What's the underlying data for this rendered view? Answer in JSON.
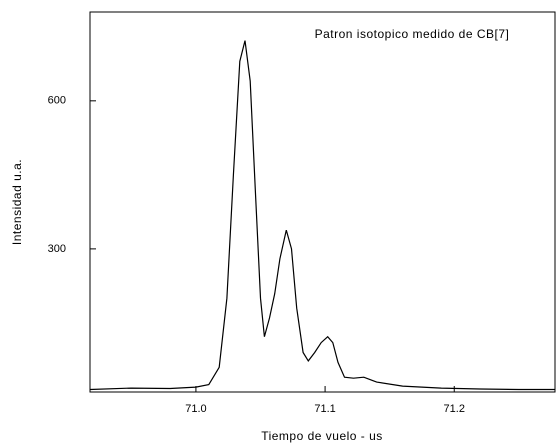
{
  "chart_data": {
    "type": "line",
    "annotation": "Patron isotopico medido de CB[7]",
    "xlabel": "Tiempo de vuelo - us",
    "ylabel": "Intensidad u.a.",
    "x": [
      70.918,
      70.95,
      70.98,
      71.0,
      71.01,
      71.018,
      71.024,
      71.029,
      71.034,
      71.038,
      71.042,
      71.046,
      71.05,
      71.053,
      71.057,
      71.061,
      71.065,
      71.07,
      71.074,
      71.078,
      71.083,
      71.087,
      71.092,
      71.097,
      71.102,
      71.106,
      71.11,
      71.115,
      71.122,
      71.13,
      71.14,
      71.16,
      71.19,
      71.22,
      71.25,
      71.278
    ],
    "series": [
      {
        "color": "#000000",
        "values": [
          15,
          18,
          17,
          20,
          25,
          60,
          200,
          450,
          680,
          722,
          640,
          420,
          200,
          122,
          160,
          209,
          280,
          338,
          300,
          180,
          90,
          73,
          90,
          110,
          122,
          110,
          70,
          40,
          38,
          40,
          30,
          22,
          18,
          16,
          15,
          15
        ]
      }
    ],
    "xlim": [
      70.918,
      71.278
    ],
    "ylim": [
      10,
      780
    ],
    "xticks": [
      {
        "value": 71.0,
        "label": "71.0"
      },
      {
        "value": 71.1,
        "label": "71.1"
      },
      {
        "value": 71.2,
        "label": "71.2"
      }
    ],
    "yticks": [
      300,
      600
    ]
  }
}
